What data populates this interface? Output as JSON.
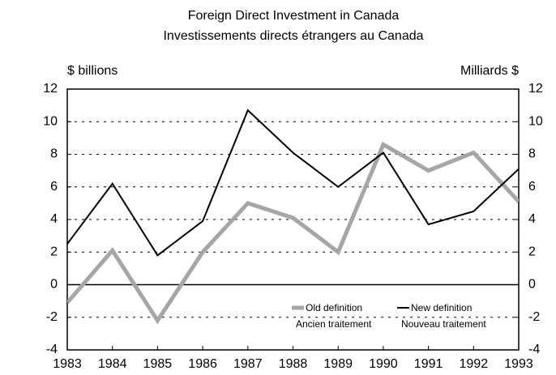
{
  "chart_data": {
    "type": "line",
    "title": "Foreign Direct Investment in Canada",
    "subtitle": "Investissements directs étrangers au Canada",
    "y_label": "$ billions",
    "y2_label": "Milliards $",
    "x": [
      1983,
      1984,
      1985,
      1986,
      1987,
      1988,
      1989,
      1990,
      1991,
      1992,
      1993
    ],
    "xlim": [
      1983,
      1993
    ],
    "xticks": [
      1983,
      1984,
      1985,
      1986,
      1987,
      1988,
      1989,
      1990,
      1991,
      1992,
      1993
    ],
    "ylim": [
      -4,
      12
    ],
    "yticks": [
      -4,
      -2,
      0,
      2,
      4,
      6,
      8,
      10,
      12
    ],
    "y2lim": [
      -4,
      12
    ],
    "y2ticks": [
      -4,
      -2,
      0,
      2,
      4,
      6,
      8,
      10,
      12
    ],
    "grid": true,
    "series": [
      {
        "name": "Old definition",
        "name_fr": "Ancien traitement",
        "color": "#a6a6a6",
        "values": [
          -1.1,
          2.1,
          -2.2,
          2.0,
          5.0,
          4.1,
          2.0,
          8.6,
          7.0,
          8.1,
          5.1
        ]
      },
      {
        "name": "New definition",
        "name_fr": "Nouveau traitement",
        "color": "#000000",
        "values": [
          2.5,
          6.2,
          1.8,
          3.9,
          10.7,
          8.1,
          6.0,
          8.1,
          3.7,
          4.5,
          7.1
        ]
      }
    ]
  }
}
